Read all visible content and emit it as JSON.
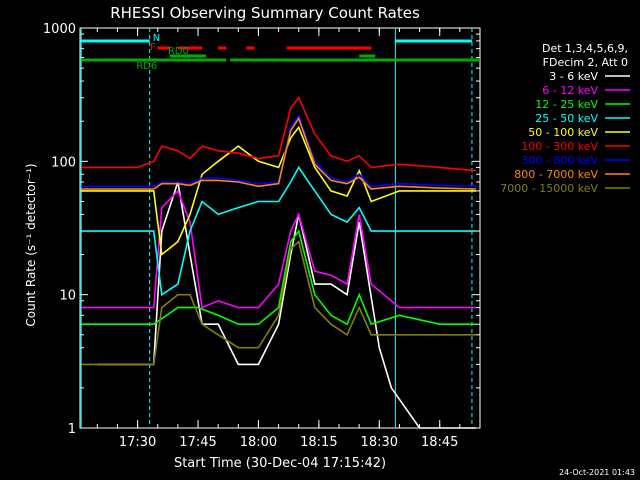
{
  "chart_data": {
    "type": "line",
    "title": "RHESSI Observing Summary Count Rates",
    "xlabel": "Start Time (30-Dec-04 17:15:42)",
    "ylabel": "Count Rate (s⁻¹ detector⁻¹)",
    "yscale": "log",
    "ylim": [
      1,
      1000
    ],
    "xlim": [
      "17:15:42",
      "18:55:00"
    ],
    "x_ticks": [
      "17:30",
      "17:45",
      "18:00",
      "18:15",
      "18:30",
      "18:45"
    ],
    "y_ticks": [
      "1",
      "10",
      "100",
      "1000"
    ],
    "grid": false,
    "legend_position": "right",
    "legend_header": [
      "Det 1,3,4,5,6,9,",
      "FDecim 2, Att 0"
    ],
    "timestamp": "24-Oct-2021 01:43",
    "series": [
      {
        "name": "3 - 6 keV",
        "color": "#ffffff",
        "x": [
          "17:20",
          "17:30",
          "17:34",
          "17:36",
          "17:40",
          "17:43",
          "17:46",
          "17:50",
          "17:55",
          "18:00",
          "18:05",
          "18:08",
          "18:10",
          "18:14",
          "18:18",
          "18:22",
          "18:25",
          "18:30",
          "18:33",
          "18:40",
          "18:50",
          "18:54"
        ],
        "values": [
          3,
          3,
          3,
          30,
          70,
          20,
          6,
          6,
          3,
          3,
          6,
          20,
          40,
          12,
          12,
          10,
          35,
          4,
          2,
          1,
          1,
          1
        ]
      },
      {
        "name": "6 - 12 keV",
        "color": "#ff00ff",
        "x": [
          "17:16",
          "17:30",
          "17:34",
          "17:36",
          "17:40",
          "17:43",
          "17:46",
          "17:50",
          "17:55",
          "18:00",
          "18:05",
          "18:08",
          "18:10",
          "18:14",
          "18:18",
          "18:22",
          "18:25",
          "18:28",
          "18:35",
          "18:45",
          "18:54"
        ],
        "values": [
          8,
          8,
          8,
          45,
          60,
          35,
          8,
          9,
          8,
          8,
          12,
          30,
          40,
          15,
          14,
          12,
          40,
          12,
          8,
          8,
          8
        ]
      },
      {
        "name": "12 - 25 keV",
        "color": "#00ff00",
        "x": [
          "17:16",
          "17:30",
          "17:34",
          "17:40",
          "17:45",
          "17:50",
          "17:55",
          "18:00",
          "18:05",
          "18:08",
          "18:10",
          "18:14",
          "18:18",
          "18:22",
          "18:25",
          "18:28",
          "18:35",
          "18:45",
          "18:54"
        ],
        "values": [
          6,
          6,
          6,
          8,
          8,
          7,
          6,
          6,
          8,
          25,
          30,
          10,
          7,
          6,
          10,
          6,
          7,
          6,
          6
        ]
      },
      {
        "name": "25 - 50 keV",
        "color": "#00ffff",
        "x": [
          "17:16",
          "17:30",
          "17:34",
          "17:36",
          "17:40",
          "17:43",
          "17:46",
          "17:50",
          "17:55",
          "18:00",
          "18:05",
          "18:08",
          "18:10",
          "18:14",
          "18:18",
          "18:22",
          "18:25",
          "18:28",
          "18:35",
          "18:45",
          "18:54"
        ],
        "values": [
          30,
          30,
          30,
          10,
          12,
          30,
          50,
          40,
          45,
          50,
          50,
          70,
          90,
          60,
          40,
          35,
          45,
          30,
          30,
          30,
          30
        ]
      },
      {
        "name": "50 - 100 keV",
        "color": "#ffff00",
        "x": [
          "17:16",
          "17:30",
          "17:34",
          "17:36",
          "17:40",
          "17:43",
          "17:46",
          "17:50",
          "17:55",
          "18:00",
          "18:05",
          "18:08",
          "18:10",
          "18:14",
          "18:18",
          "18:22",
          "18:25",
          "18:28",
          "18:35",
          "18:45",
          "18:54"
        ],
        "values": [
          60,
          60,
          60,
          20,
          25,
          40,
          80,
          100,
          130,
          100,
          90,
          150,
          180,
          90,
          60,
          55,
          85,
          50,
          60,
          60,
          60
        ]
      },
      {
        "name": "100 - 300 keV",
        "color": "#ff0000",
        "x": [
          "17:16",
          "17:30",
          "17:34",
          "17:36",
          "17:40",
          "17:43",
          "17:46",
          "17:50",
          "17:55",
          "18:00",
          "18:05",
          "18:08",
          "18:10",
          "18:14",
          "18:18",
          "18:22",
          "18:25",
          "18:28",
          "18:35",
          "18:45",
          "18:54"
        ],
        "values": [
          90,
          90,
          100,
          130,
          120,
          105,
          130,
          120,
          115,
          105,
          110,
          250,
          300,
          160,
          110,
          100,
          110,
          90,
          95,
          90,
          85
        ]
      },
      {
        "name": "300 - 800 keV",
        "color": "#0000ff",
        "x": [
          "17:16",
          "17:30",
          "17:34",
          "17:36",
          "17:40",
          "17:43",
          "17:46",
          "17:50",
          "17:55",
          "18:00",
          "18:05",
          "18:08",
          "18:10",
          "18:14",
          "18:18",
          "18:22",
          "18:25",
          "18:28",
          "18:35",
          "18:45",
          "18:54"
        ],
        "values": [
          65,
          65,
          65,
          70,
          70,
          68,
          75,
          75,
          72,
          68,
          70,
          180,
          220,
          100,
          75,
          70,
          80,
          65,
          68,
          66,
          65
        ]
      },
      {
        "name": "800 - 7000 keV",
        "color": "#ff8800",
        "x": [
          "17:16",
          "17:30",
          "17:34",
          "17:36",
          "17:40",
          "17:43",
          "17:46",
          "17:50",
          "17:55",
          "18:00",
          "18:05",
          "18:08",
          "18:10",
          "18:14",
          "18:18",
          "18:22",
          "18:25",
          "18:28",
          "18:35",
          "18:45",
          "18:54"
        ],
        "values": [
          62,
          62,
          62,
          68,
          68,
          66,
          72,
          72,
          70,
          65,
          68,
          170,
          210,
          95,
          72,
          68,
          76,
          62,
          65,
          63,
          62
        ]
      },
      {
        "name": "7000 - 15000 keV",
        "color": "#808000",
        "x": [
          "17:16",
          "17:30",
          "17:34",
          "17:36",
          "17:40",
          "17:43",
          "17:46",
          "17:50",
          "17:55",
          "18:00",
          "18:05",
          "18:08",
          "18:10",
          "18:14",
          "18:18",
          "18:22",
          "18:25",
          "18:28",
          "18:35",
          "18:45",
          "18:54"
        ],
        "values": [
          3,
          3,
          3,
          8,
          10,
          10,
          6,
          5,
          4,
          4,
          7,
          22,
          25,
          8,
          6,
          5,
          8,
          5,
          5,
          5,
          5
        ]
      }
    ],
    "vertical_markers": [
      {
        "x": "17:16",
        "color": "#00ffff",
        "style": "solid"
      },
      {
        "x": "17:33",
        "color": "#00ffff",
        "style": "dashed"
      },
      {
        "x": "18:34",
        "color": "#00ffff",
        "style": "solid"
      },
      {
        "x": "18:53",
        "color": "#00ffff",
        "style": "dashed"
      }
    ],
    "flag_bars": [
      {
        "label": "N",
        "color": "#00ffff",
        "segments": [
          [
            "17:16",
            "17:33"
          ],
          [
            "18:34",
            "18:53"
          ]
        ]
      },
      {
        "label": "F",
        "color": "#ff0000",
        "segments": [
          [
            "17:35",
            "17:38"
          ],
          [
            "17:40",
            "17:46"
          ],
          [
            "17:50",
            "17:52"
          ],
          [
            "17:57",
            "17:59"
          ],
          [
            "18:07",
            "18:28"
          ]
        ]
      },
      {
        "label": "RD0",
        "color": "#00aa00",
        "segments": [
          [
            "17:38",
            "17:47"
          ],
          [
            "18:25",
            "18:29"
          ]
        ]
      },
      {
        "label": "RD6",
        "color": "#00aa00",
        "segments": [
          [
            "17:16",
            "17:52"
          ],
          [
            "17:53",
            "18:55"
          ]
        ]
      }
    ]
  }
}
